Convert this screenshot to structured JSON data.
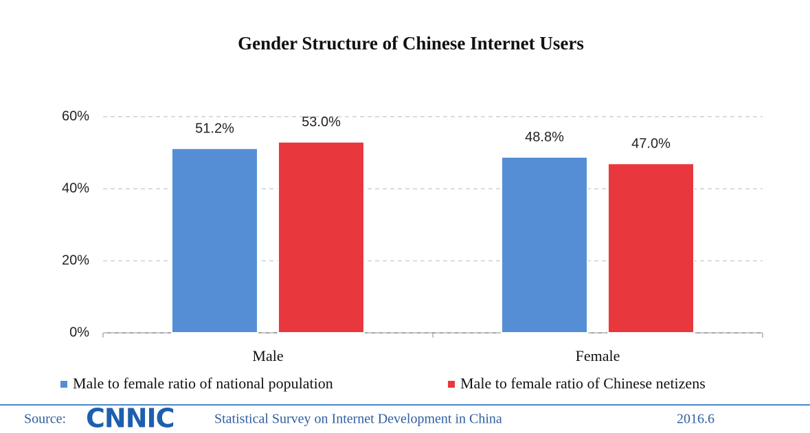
{
  "chart_data": {
    "type": "bar",
    "title": "Gender Structure of Chinese Internet Users",
    "categories": [
      "Male",
      "Female"
    ],
    "series": [
      {
        "name": "Male to female ratio of national population",
        "color": "#558ed5",
        "values": [
          51.2,
          48.8
        ],
        "value_labels": [
          "51.2%",
          "48.8%"
        ]
      },
      {
        "name": "Male to female ratio of Chinese netizens",
        "color": "#e8383d",
        "values": [
          53.0,
          47.0
        ],
        "value_labels": [
          "53.0%",
          "47.0%"
        ]
      }
    ],
    "ylim": [
      0,
      60
    ],
    "yticks": [
      {
        "value": 0,
        "label": "0%"
      },
      {
        "value": 20,
        "label": "20%"
      },
      {
        "value": 40,
        "label": "40%"
      },
      {
        "value": 60,
        "label": "60%"
      }
    ],
    "grid": true,
    "legend": "bottom"
  },
  "footer": {
    "source_label": "Source:",
    "logo": "CNNIC",
    "text": "Statistical Survey on Internet Development in China",
    "date": "2016.6"
  }
}
